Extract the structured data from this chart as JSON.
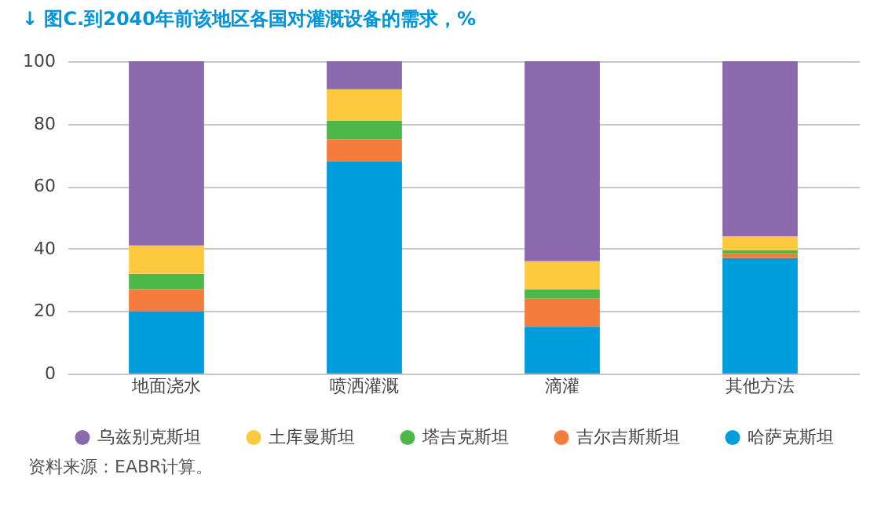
{
  "chart_data": {
    "type": "bar",
    "stacked": true,
    "title": "↓ 图C.到2040年前该地区各国对灌溉设备的需求，%",
    "categories": [
      "地面浇水",
      "喷洒灌溉",
      "滴灌",
      "其他方法"
    ],
    "series": [
      {
        "name": "哈萨克斯坦",
        "color": "#009ddc",
        "values": [
          20,
          68,
          15,
          37
        ]
      },
      {
        "name": "吉尔吉斯斯坦",
        "color": "#f47c3c",
        "values": [
          7,
          7,
          9,
          1.5
        ]
      },
      {
        "name": "塔吉克斯坦",
        "color": "#4cb848",
        "values": [
          5,
          6,
          3,
          1
        ]
      },
      {
        "name": "土库曼斯坦",
        "color": "#fdc93f",
        "values": [
          9,
          10,
          9,
          4.5
        ]
      },
      {
        "name": "乌兹别克斯坦",
        "color": "#8a6aad",
        "values": [
          59,
          9,
          64,
          56
        ]
      }
    ],
    "ylim": [
      0,
      100
    ],
    "yticks": [
      0,
      20,
      40,
      60,
      80,
      100
    ],
    "grid": "y",
    "legend": "bottom",
    "marker": "circle",
    "annotations": [
      "资料来源：EABR计算。"
    ]
  }
}
